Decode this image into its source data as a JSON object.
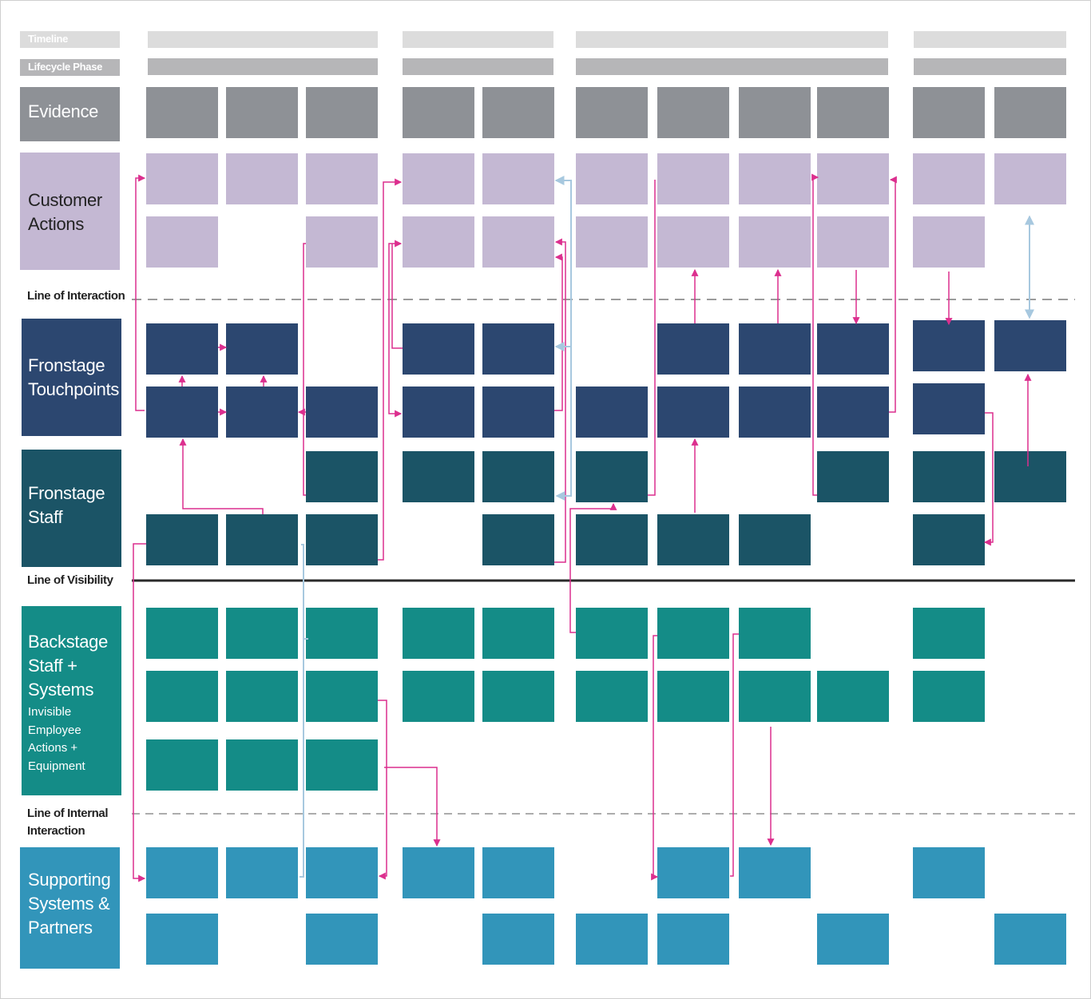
{
  "colors": {
    "timeline": "#dcdcdc",
    "lifecycle": "#b6b6b8",
    "evidence": "#8e9196",
    "customer": "#c4b8d3",
    "touchpoints": "#2c4770",
    "frontstage_staff": "#1b5466",
    "backstage": "#148c87",
    "supporting": "#3295ba",
    "connector_magenta": "#dc2f8e",
    "connector_blue": "#a7c8df",
    "line_dark": "#2a2a2a",
    "line_dash": "#7a7a7a"
  },
  "header_rows": {
    "timeline": "Timeline",
    "lifecycle": "Lifecycle Phase"
  },
  "rows": {
    "evidence": {
      "label": "Evidence",
      "sub": ""
    },
    "customer": {
      "label": "Customer\nActions",
      "sub": ""
    },
    "touchpoints": {
      "label": "Fronstage\nTouchpoints",
      "sub": ""
    },
    "frontstage_staff": {
      "label": "Fronstage\nStaff",
      "sub": ""
    },
    "backstage": {
      "label": "Backstage\nStaff +\nSystems",
      "sub": "Invisible\nEmployee\nActions +\nEquipment"
    },
    "supporting": {
      "label": "Supporting\nSystems  &\nPartners",
      "sub": ""
    }
  },
  "lines": {
    "interaction": "Line of Interaction",
    "visibility": "Line of Visibility",
    "internal": "Line of Internal\nInteraction"
  },
  "phases": 4,
  "columns": 11,
  "cells": {
    "evidence": [
      [
        1,
        1,
        1,
        1,
        1,
        1,
        1,
        1,
        1,
        1,
        1
      ]
    ],
    "customer": [
      [
        1,
        1,
        1,
        1,
        1,
        1,
        1,
        1,
        1,
        1,
        1
      ],
      [
        1,
        0,
        1,
        1,
        1,
        1,
        1,
        1,
        1,
        1,
        0
      ]
    ],
    "touchpoints": [
      [
        1,
        1,
        0,
        1,
        1,
        0,
        1,
        1,
        1,
        1,
        1
      ],
      [
        1,
        1,
        1,
        1,
        1,
        1,
        1,
        1,
        1,
        1,
        0
      ]
    ],
    "frontstage_staff": [
      [
        0,
        0,
        1,
        1,
        1,
        1,
        0,
        0,
        1,
        1,
        1
      ],
      [
        1,
        1,
        1,
        0,
        1,
        1,
        1,
        1,
        0,
        1,
        0
      ]
    ],
    "backstage": [
      [
        1,
        1,
        1,
        1,
        1,
        1,
        1,
        1,
        0,
        1,
        0
      ],
      [
        1,
        1,
        1,
        1,
        1,
        1,
        1,
        1,
        1,
        1,
        0
      ],
      [
        1,
        1,
        1,
        0,
        0,
        0,
        0,
        0,
        0,
        0,
        0
      ]
    ],
    "supporting": [
      [
        1,
        1,
        1,
        1,
        1,
        0,
        1,
        1,
        0,
        1,
        0
      ],
      [
        1,
        0,
        1,
        0,
        1,
        1,
        1,
        0,
        1,
        0,
        1
      ]
    ]
  }
}
